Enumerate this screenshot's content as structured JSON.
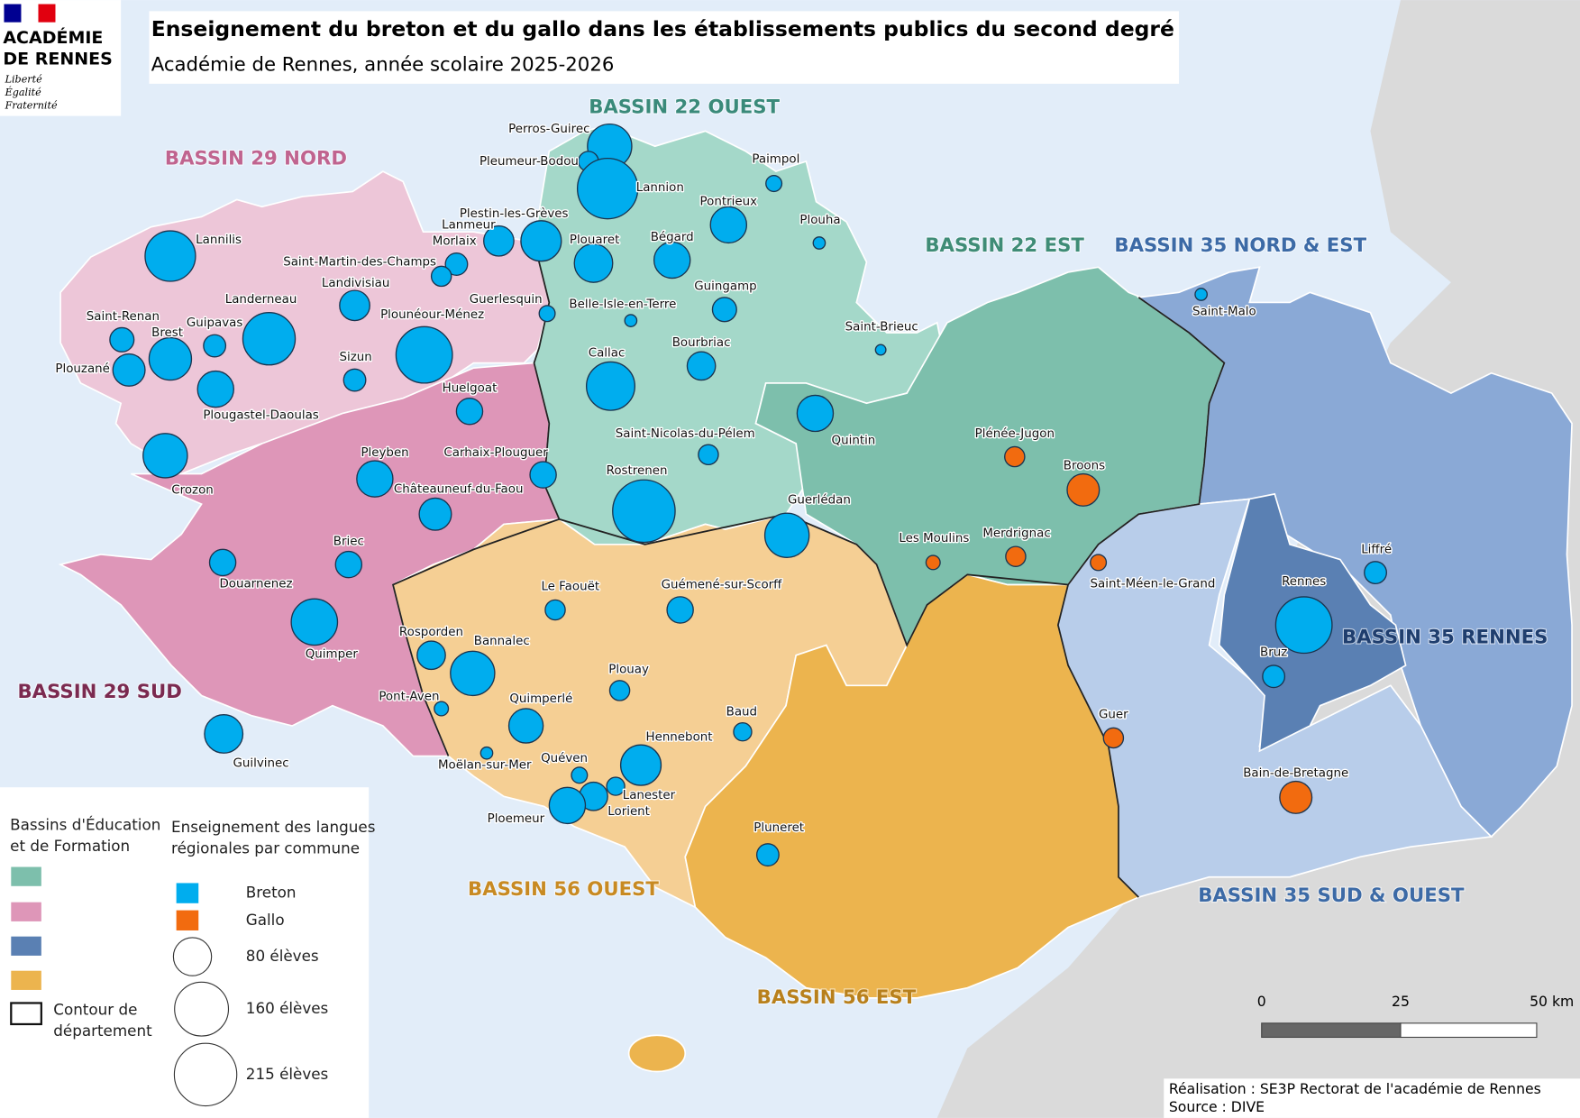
{
  "header": {
    "title": "Enseignement du breton et du gallo dans les établissements publics du second degré",
    "subtitle": "Académie de Rennes, année scolaire 2025-2026"
  },
  "logo": {
    "name": [
      "ACADÉMIE",
      "DE RENNES"
    ],
    "motto": [
      "Liberté",
      "Égalité",
      "Fraternité"
    ]
  },
  "bassins": [
    "BASSIN 22 OUEST",
    "BASSIN 29 NORD",
    "BASSIN 22 EST",
    "BASSIN 35 NORD & EST",
    "BASSIN 35 RENNES",
    "BASSIN 29 SUD",
    "BASSIN 56 OUEST",
    "BASSIN 56 EST",
    "BASSIN 35 SUD & OUEST"
  ],
  "languages": [
    {
      "name": "Breton",
      "color": "#00adee",
      "communes": [
        {
          "name": "Perros-Guirec",
          "students": 108
        },
        {
          "name": "Pleumeur-Bodou",
          "students": 22
        },
        {
          "name": "Lannion",
          "students": 201
        },
        {
          "name": "Paimpol",
          "students": 14
        },
        {
          "name": "Plestin-les-Grèves",
          "students": 90
        },
        {
          "name": "Lanmeur",
          "students": 50
        },
        {
          "name": "Morlaix",
          "students": 27
        },
        {
          "name": "Saint-Martin-des-Champs",
          "students": 22
        },
        {
          "name": "Lannilis",
          "students": 140
        },
        {
          "name": "Plouaret",
          "students": 81
        },
        {
          "name": "Bégard",
          "students": 72
        },
        {
          "name": "Pontrieux",
          "students": 72
        },
        {
          "name": "Plouha",
          "students": 8
        },
        {
          "name": "Landivisiau",
          "students": 50
        },
        {
          "name": "Guerlesquin",
          "students": 14
        },
        {
          "name": "Belle-Isle-en-Terre",
          "students": 8
        },
        {
          "name": "Guingamp",
          "students": 32
        },
        {
          "name": "Saint-Renan",
          "students": 32
        },
        {
          "name": "Brest",
          "students": 99
        },
        {
          "name": "Guipavas",
          "students": 27
        },
        {
          "name": "Landerneau",
          "students": 151
        },
        {
          "name": "Plounéour-Ménez",
          "students": 175
        },
        {
          "name": "Plouzané",
          "students": 57
        },
        {
          "name": "Sizun",
          "students": 27
        },
        {
          "name": "Plougastel-Daoulas",
          "students": 72
        },
        {
          "name": "Callac",
          "students": 129
        },
        {
          "name": "Bourbriac",
          "students": 44
        },
        {
          "name": "Saint-Brieuc",
          "students": 6
        },
        {
          "name": "Huelgoat",
          "students": 38
        },
        {
          "name": "Quintin",
          "students": 72
        },
        {
          "name": "Crozon",
          "students": 108
        },
        {
          "name": "Pleyben",
          "students": 72
        },
        {
          "name": "Carhaix-Plouguer",
          "students": 38
        },
        {
          "name": "Saint-Nicolas-du-Pélem",
          "students": 22
        },
        {
          "name": "Châteauneuf-du-Faou",
          "students": 57
        },
        {
          "name": "Rostrenen",
          "students": 215
        },
        {
          "name": "Guerlédan",
          "students": 108
        },
        {
          "name": "Douarnenez",
          "students": 38
        },
        {
          "name": "Briec",
          "students": 38
        },
        {
          "name": "Le Faouët",
          "students": 22
        },
        {
          "name": "Guémené-sur-Scorff",
          "students": 38
        },
        {
          "name": "Quimper",
          "students": 118
        },
        {
          "name": "Rosporden",
          "students": 44
        },
        {
          "name": "Bannalec",
          "students": 108
        },
        {
          "name": "Plouay",
          "students": 22
        },
        {
          "name": "Pont-Aven",
          "students": 11
        },
        {
          "name": "Quimperlé",
          "students": 65
        },
        {
          "name": "Baud",
          "students": 18
        },
        {
          "name": "Guilvinec",
          "students": 81
        },
        {
          "name": "Moëlan-sur-Mer",
          "students": 8
        },
        {
          "name": "Hennebont",
          "students": 90
        },
        {
          "name": "Quéven",
          "students": 14
        },
        {
          "name": "Lanester",
          "students": 18
        },
        {
          "name": "Lorient",
          "students": 44
        },
        {
          "name": "Ploemeur",
          "students": 72
        },
        {
          "name": "Pluneret",
          "students": 27
        },
        {
          "name": "Saint-Malo",
          "students": 8
        },
        {
          "name": "Liffré",
          "students": 27
        },
        {
          "name": "Rennes",
          "students": 175
        },
        {
          "name": "Bruz",
          "students": 27
        }
      ]
    },
    {
      "name": "Gallo",
      "color": "#f26b0f",
      "communes": [
        {
          "name": "Plénée-Jugon",
          "students": 22
        },
        {
          "name": "Broons",
          "students": 57
        },
        {
          "name": "Les Moulins",
          "students": 11
        },
        {
          "name": "Merdrignac",
          "students": 22
        },
        {
          "name": "Saint-Méen-le-Grand",
          "students": 14
        },
        {
          "name": "Guer",
          "students": 22
        },
        {
          "name": "Bain-de-Bretagne",
          "students": 57
        }
      ]
    }
  ],
  "legend": {
    "bassins_title": [
      "Bassins d'Éducation",
      "et de Formation"
    ],
    "languages_title": [
      "Enseignement des langues",
      "régionales par commune"
    ],
    "sizes": [
      {
        "value": 80,
        "label": "80 élèves"
      },
      {
        "value": 160,
        "label": "160 élèves"
      },
      {
        "value": 215,
        "label": "215 élèves"
      }
    ],
    "border": [
      "Contour de",
      "département"
    ]
  },
  "scale": {
    "labels": [
      "0",
      "25",
      "50 km"
    ]
  },
  "credits": [
    "Réalisation : SE3P Rectorat de l'académie de Rennes",
    "Source : DIVE"
  ]
}
